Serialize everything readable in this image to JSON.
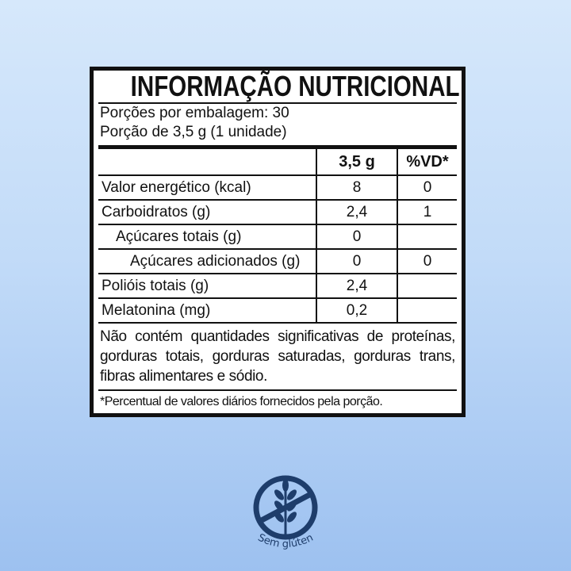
{
  "label": {
    "title": "INFORMAÇÃO NUTRICIONAL",
    "servings_per_package": "Porções por embalagem: 30",
    "serving_size": "Porção de 3,5 g (1 unidade)",
    "columns": [
      "",
      "3,5 g",
      "%VD*"
    ],
    "rows": [
      {
        "name": "Valor energético (kcal)",
        "amount": "8",
        "dv": "0",
        "indent": 0
      },
      {
        "name": "Carboidratos (g)",
        "amount": "2,4",
        "dv": "1",
        "indent": 0
      },
      {
        "name": "Açúcares totais (g)",
        "amount": "0",
        "dv": "",
        "indent": 1
      },
      {
        "name": "Açúcares adicionados (g)",
        "amount": "0",
        "dv": "0",
        "indent": 2
      },
      {
        "name": "Polióis totais (g)",
        "amount": "2,4",
        "dv": "",
        "indent": 0
      },
      {
        "name": "Melatonina (mg)",
        "amount": "0,2",
        "dv": "",
        "indent": 0
      }
    ],
    "note": "Não contém quantidades significativas de proteínas, gorduras totais, gorduras saturadas, gorduras trans, fibras alimentares e sódio.",
    "footnote": "*Percentual de valores diários fornecidos pela porção."
  },
  "badge": {
    "text": "Sem glúten",
    "icon": "gluten-free-wheat-icon",
    "color": "#1e3d6b"
  }
}
